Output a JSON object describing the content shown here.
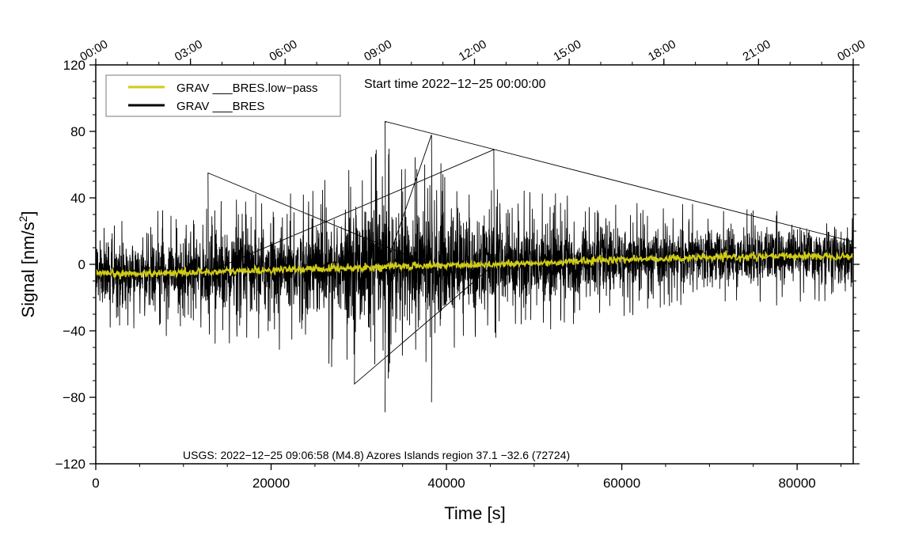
{
  "chart_data": {
    "type": "line",
    "title": "Start time 2022−12−25 00:00:00",
    "xlabel": "Time [s]",
    "ylabel": "Signal [nm/s",
    "ylabel_sup": "2",
    "ylabel_end": "]",
    "xlim": [
      0,
      86400
    ],
    "ylim": [
      -120,
      120
    ],
    "x_ticks": [
      0,
      20000,
      40000,
      60000,
      80000
    ],
    "x_tick_labels": [
      "0",
      "20000",
      "40000",
      "60000",
      "80000"
    ],
    "x_minor_step": 5000,
    "y_ticks": [
      120,
      80,
      40,
      0,
      -40,
      -80,
      -120
    ],
    "y_tick_labels": [
      "120",
      "80",
      "40",
      "0",
      "−40",
      "−80",
      "−120"
    ],
    "y_minor_step": 10,
    "top_axis": {
      "ticks_seconds": [
        0,
        10800,
        21600,
        32400,
        43200,
        54000,
        64800,
        75600,
        86400
      ],
      "labels": [
        "00:00",
        "03:00",
        "06:00",
        "09:00",
        "12:00",
        "15:00",
        "18:00",
        "21:00",
        "00:00"
      ],
      "minor_step_seconds": 3600
    },
    "legend": {
      "position": "top-left",
      "entries": [
        {
          "name": "GRAV ___BRES.low−pass",
          "color": "#cfcb17"
        },
        {
          "name": "GRAV ___BRES",
          "color": "#000000"
        }
      ]
    },
    "annotation": "USGS: 2022−12−25 09:06:58 (M4.8) Azores Islands region 37.1 −32.6 (72724)",
    "series": [
      {
        "name": "GRAV ___BRES",
        "color": "#000000",
        "envelope_x": [
          0,
          5000,
          10000,
          15000,
          20000,
          25000,
          30000,
          33000,
          36000,
          40000,
          45000,
          50000,
          55000,
          60000,
          65000,
          70000,
          75000,
          80000,
          86400
        ],
        "envelope_amplitude": [
          22,
          23,
          25,
          28,
          30,
          35,
          42,
          45,
          42,
          38,
          32,
          28,
          25,
          23,
          21,
          20,
          19,
          19,
          19
        ],
        "peak_x": [
          33000,
          33000,
          38300,
          38300,
          12800,
          45400,
          29500
        ],
        "peak_y": [
          86,
          -89,
          78,
          -83,
          55,
          69,
          -72
        ]
      },
      {
        "name": "GRAV ___BRES.low−pass",
        "color": "#cfcb17",
        "x": [
          0,
          10000,
          20000,
          30000,
          40000,
          50000,
          60000,
          70000,
          80000,
          86400
        ],
        "y": [
          -6,
          -5,
          -3.5,
          -2,
          -0.5,
          0.5,
          3,
          4,
          5,
          5
        ]
      }
    ]
  }
}
